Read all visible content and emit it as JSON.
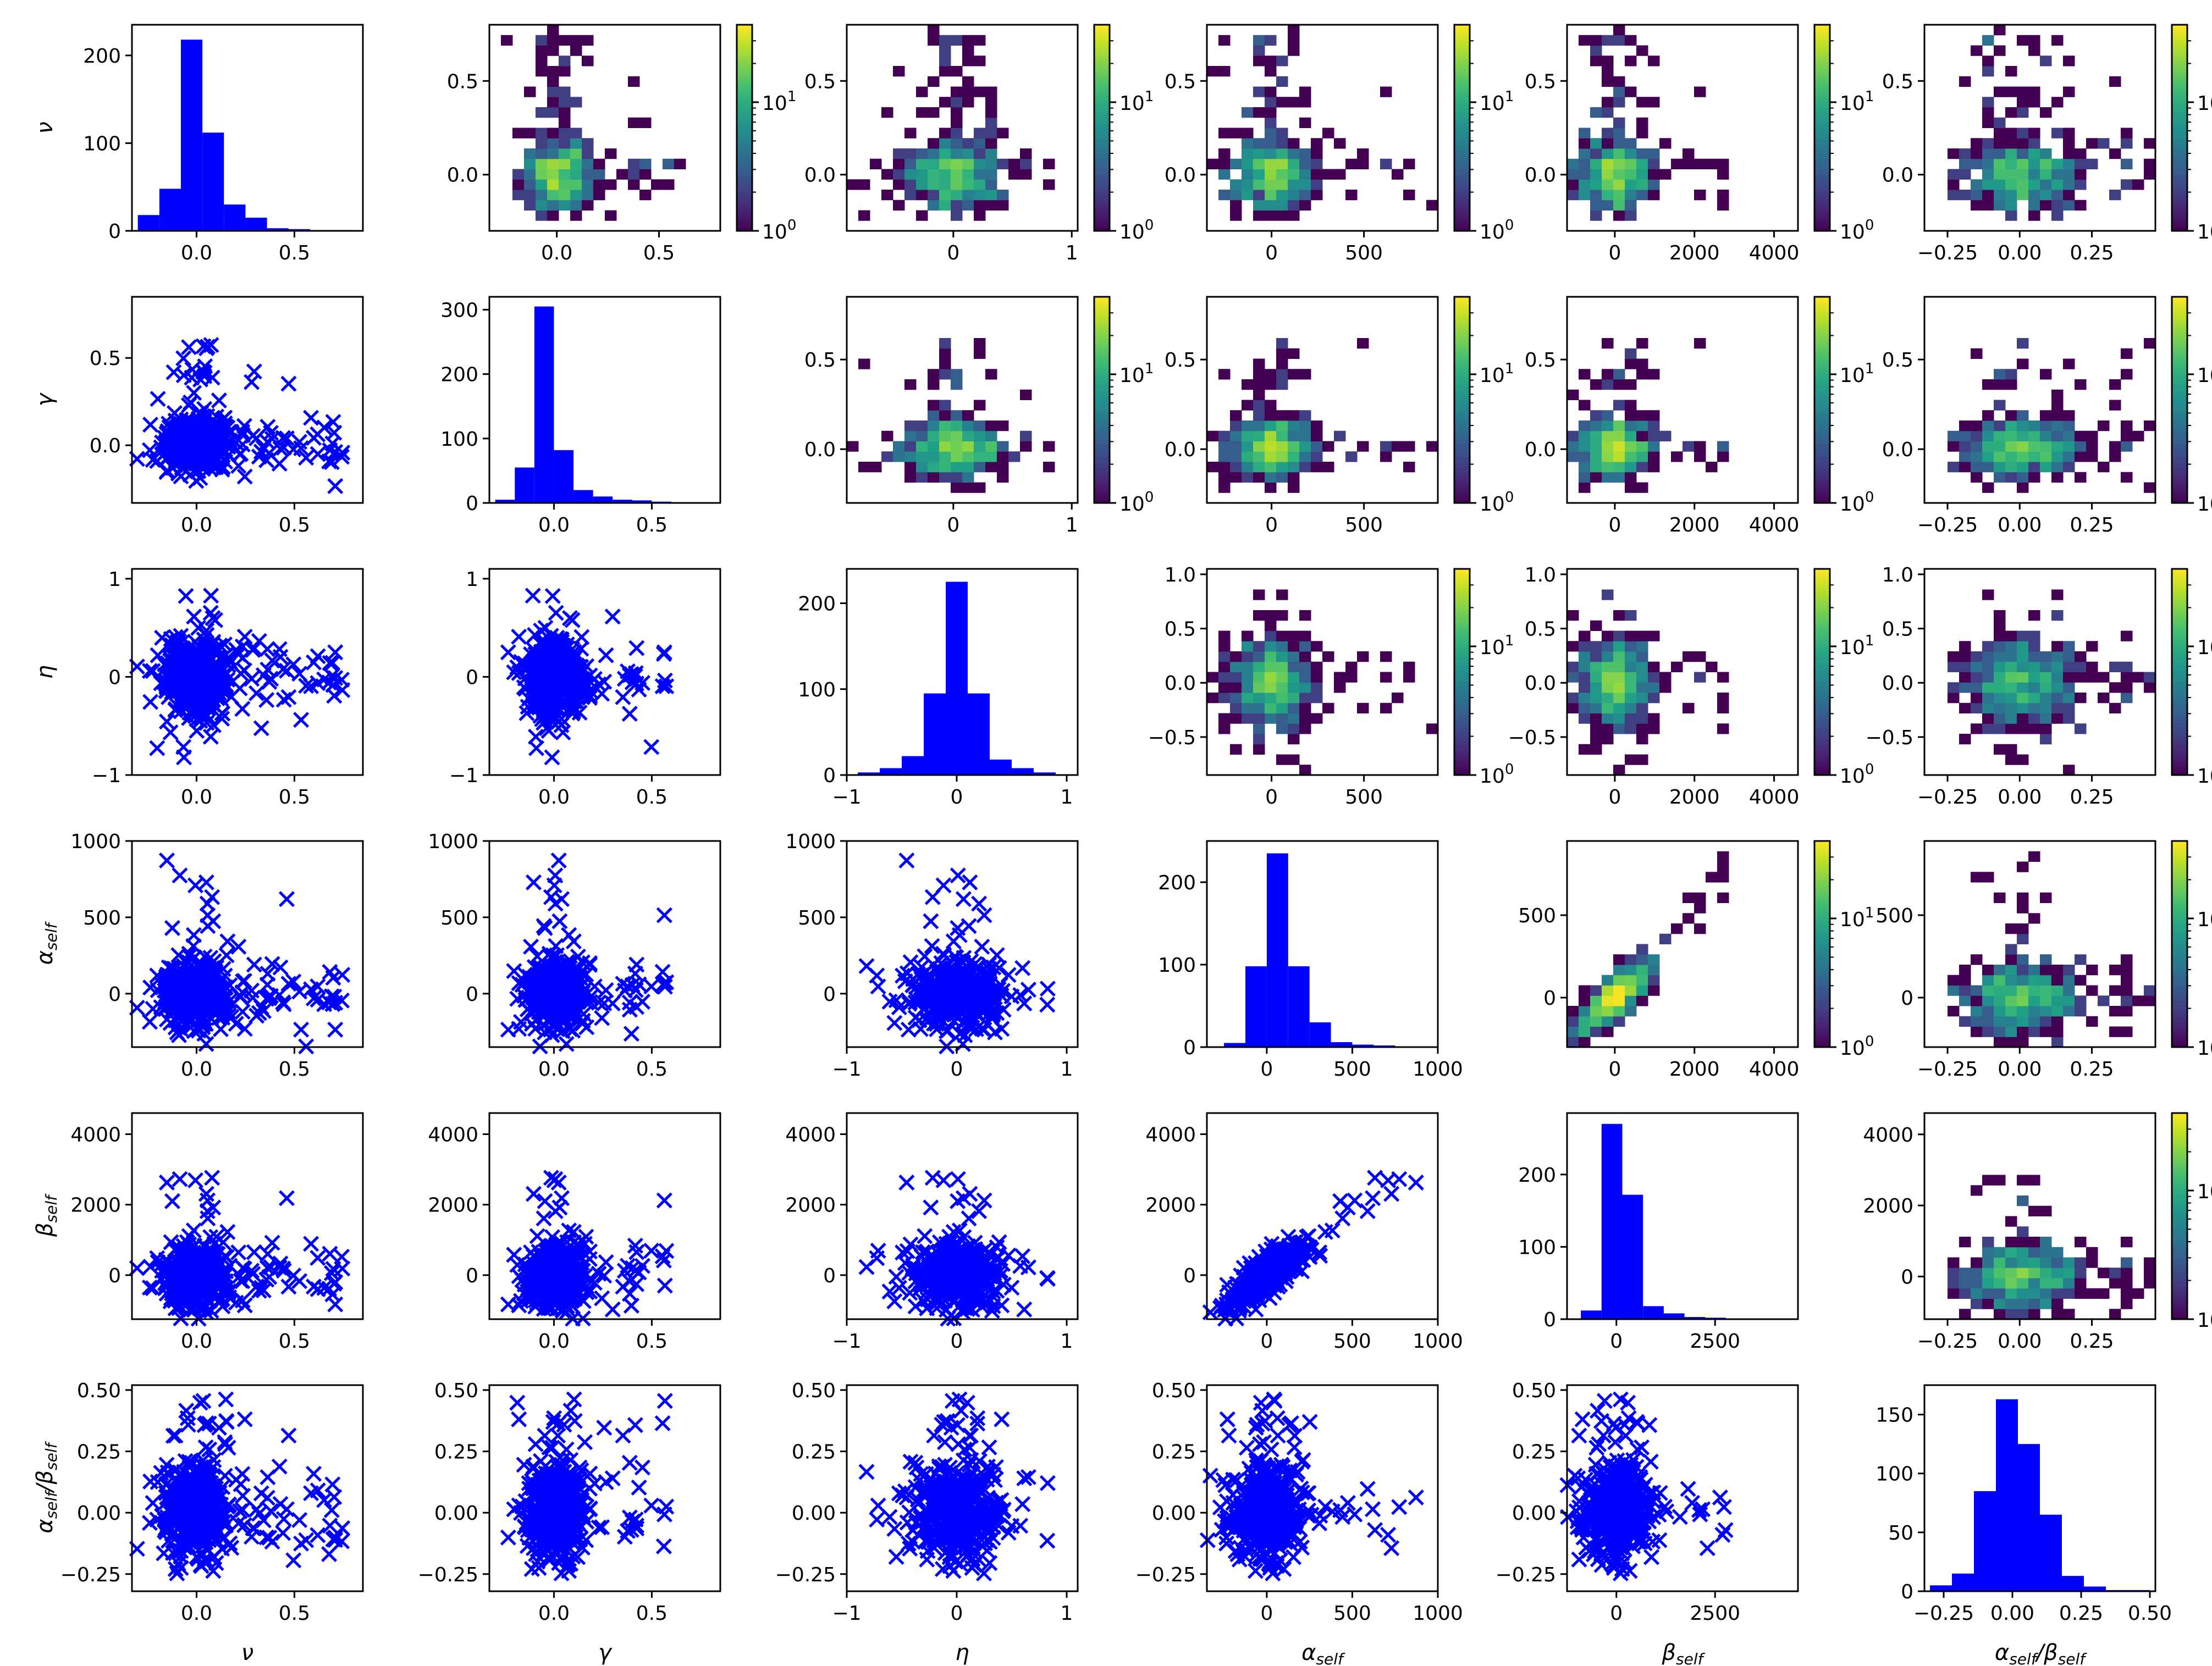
{
  "figure": {
    "variables": [
      {
        "key": "nu",
        "symbol": "ν",
        "sub": ""
      },
      {
        "key": "gamma",
        "symbol": "γ",
        "sub": ""
      },
      {
        "key": "eta",
        "symbol": "η",
        "sub": ""
      },
      {
        "key": "alpha_self",
        "symbol": "α",
        "sub": "self"
      },
      {
        "key": "beta_self",
        "symbol": "β",
        "sub": "self"
      },
      {
        "key": "ratio",
        "symbol": "α",
        "sub": "self",
        "symbol2": "β",
        "sub2": "self"
      }
    ],
    "colormap": "viridis",
    "marker_color": "#0000ff",
    "hist_color": "#0000ff"
  },
  "chart_data": {
    "type": "pairplot",
    "title": "",
    "layout": "lower: scatter (x markers); diagonal: histogram; upper: 2D log-scale histogram with colorbar",
    "axes": {
      "nu": {
        "lim": [
          -0.33,
          0.85
        ],
        "ticks": [
          0.0,
          0.5
        ],
        "tick_labels": [
          "0.0",
          "0.5"
        ]
      },
      "gamma": {
        "lim": [
          -0.33,
          0.85
        ],
        "ticks": [
          0.0,
          0.5
        ],
        "tick_labels": [
          "0.0",
          "0.5"
        ]
      },
      "eta": {
        "lim": [
          -1.0,
          1.1
        ],
        "ticks_x": [
          -1,
          0,
          1
        ],
        "tick_labels_x": [
          "−1",
          "0",
          "1"
        ],
        "ticks_y": [
          -1,
          0,
          1
        ],
        "tick_labels_y": [
          "−1",
          "0",
          "1"
        ]
      },
      "alpha_self": {
        "lim": [
          -350,
          1000
        ],
        "ticks_x": [
          0,
          500,
          1000
        ],
        "tick_labels_x": [
          "0",
          "500",
          "1000"
        ],
        "ticks_y": [
          0,
          500,
          1000
        ],
        "tick_labels_y": [
          "0",
          "500",
          "1000"
        ]
      },
      "beta_self": {
        "lim": [
          -1250,
          4600
        ],
        "ticks_x": [
          0,
          2500
        ],
        "tick_labels_x": [
          "0",
          "2500"
        ],
        "ticks_y": [
          0,
          2000,
          4000
        ],
        "tick_labels_y": [
          "0",
          "2000",
          "4000"
        ]
      },
      "ratio": {
        "lim": [
          -0.32,
          0.52
        ],
        "ticks": [
          -0.25,
          0.0,
          0.25,
          0.5
        ],
        "tick_labels": [
          "−0.25",
          "0.00",
          "0.25",
          "0.50"
        ]
      }
    },
    "upper_axes": {
      "gamma_x": {
        "lim": [
          -0.33,
          0.8
        ],
        "ticks": [
          0.0,
          0.5
        ],
        "tick_labels": [
          "0.0",
          "0.5"
        ]
      },
      "eta_x": {
        "lim": [
          -0.9,
          1.05
        ],
        "ticks": [
          0,
          1
        ],
        "tick_labels": [
          "0",
          "1"
        ]
      },
      "alpha_x": {
        "lim": [
          -350,
          900
        ],
        "ticks": [
          0,
          500
        ],
        "tick_labels": [
          "0",
          "500"
        ]
      },
      "beta_x": {
        "lim": [
          -1200,
          4600
        ],
        "ticks": [
          0,
          2000,
          4000
        ],
        "tick_labels": [
          "0",
          "2000",
          "4000"
        ]
      },
      "ratio_x": {
        "lim": [
          -0.33,
          0.47
        ],
        "ticks": [
          -0.25,
          0.0,
          0.25
        ],
        "tick_labels": [
          "−0.25",
          "0.00",
          "0.25"
        ]
      },
      "nu_y": {
        "lim": [
          -0.3,
          0.8
        ],
        "ticks": [
          0.0,
          0.5
        ],
        "tick_labels": [
          "0.0",
          "0.5"
        ]
      },
      "gamma_y": {
        "lim": [
          -0.3,
          0.85
        ],
        "ticks": [
          0.0,
          0.5
        ],
        "tick_labels": [
          "0.0",
          "0.5"
        ]
      },
      "eta_y": {
        "lim": [
          -0.85,
          1.05
        ],
        "ticks": [
          -0.5,
          0.0,
          0.5,
          1.0
        ],
        "tick_labels": [
          "−0.5",
          "0.0",
          "0.5",
          "1.0"
        ]
      },
      "alpha_y": {
        "lim": [
          -300,
          950
        ],
        "ticks": [
          0,
          500
        ],
        "tick_labels": [
          "0",
          "500"
        ]
      },
      "beta_y": {
        "lim": [
          -1200,
          4600
        ],
        "ticks": [
          0,
          2000,
          4000
        ],
        "tick_labels": [
          "0",
          "2000",
          "4000"
        ]
      }
    },
    "histograms": {
      "nu": {
        "ylim": [
          0,
          235
        ],
        "yticks": [
          0,
          100,
          200
        ],
        "yticklabels": [
          "0",
          "100",
          "200"
        ],
        "edges": [
          -0.3,
          -0.19,
          -0.08,
          0.03,
          0.14,
          0.25,
          0.36,
          0.47,
          0.58,
          0.69,
          0.8
        ],
        "counts": [
          18,
          48,
          218,
          112,
          30,
          15,
          3,
          2,
          1,
          1
        ]
      },
      "gamma": {
        "ylim": [
          0,
          320
        ],
        "yticks": [
          0,
          100,
          200,
          300
        ],
        "yticklabels": [
          "0",
          "100",
          "200",
          "300"
        ],
        "edges": [
          -0.3,
          -0.2,
          -0.1,
          0.0,
          0.1,
          0.2,
          0.3,
          0.4,
          0.5,
          0.6
        ],
        "counts": [
          5,
          55,
          305,
          82,
          20,
          10,
          5,
          4,
          2
        ]
      },
      "eta": {
        "ylim": [
          0,
          240
        ],
        "yticks": [
          0,
          100,
          200
        ],
        "yticklabels": [
          "0",
          "100",
          "200"
        ],
        "edges": [
          -0.9,
          -0.7,
          -0.5,
          -0.3,
          -0.1,
          0.1,
          0.3,
          0.5,
          0.7,
          0.9
        ],
        "counts": [
          3,
          8,
          22,
          95,
          225,
          95,
          18,
          8,
          3
        ]
      },
      "alpha_self": {
        "ylim": [
          0,
          250
        ],
        "yticks": [
          0,
          100,
          200
        ],
        "yticklabels": [
          "0",
          "100",
          "200"
        ],
        "edges": [
          -250,
          -125,
          0,
          125,
          250,
          375,
          500,
          625,
          750,
          875
        ],
        "counts": [
          5,
          98,
          235,
          98,
          30,
          6,
          3,
          2,
          1
        ]
      },
      "beta_self": {
        "ylim": [
          0,
          285
        ],
        "yticks": [
          0,
          100,
          200
        ],
        "yticklabels": [
          "0",
          "100",
          "200"
        ],
        "edges": [
          -900,
          -375,
          150,
          675,
          1200,
          1725,
          2250,
          2775,
          3300,
          3825,
          4350
        ],
        "counts": [
          12,
          270,
          172,
          18,
          8,
          3,
          2,
          1,
          0,
          1
        ]
      },
      "ratio": {
        "ylim": [
          0,
          175
        ],
        "yticks": [
          0,
          50,
          100,
          150
        ],
        "yticklabels": [
          "0",
          "50",
          "100",
          "150"
        ],
        "edges": [
          -0.3,
          -0.22,
          -0.14,
          -0.06,
          0.02,
          0.1,
          0.18,
          0.26,
          0.34,
          0.42,
          0.5
        ],
        "counts": [
          5,
          15,
          85,
          163,
          125,
          65,
          13,
          4,
          1,
          1
        ]
      }
    },
    "colorbar": {
      "scale": "log",
      "vmin": 1,
      "vmax": 40,
      "ticks": [
        1,
        10
      ],
      "tick_labels": [
        {
          "base": "10",
          "exp": "0"
        },
        {
          "base": "10",
          "exp": "1"
        }
      ]
    }
  }
}
